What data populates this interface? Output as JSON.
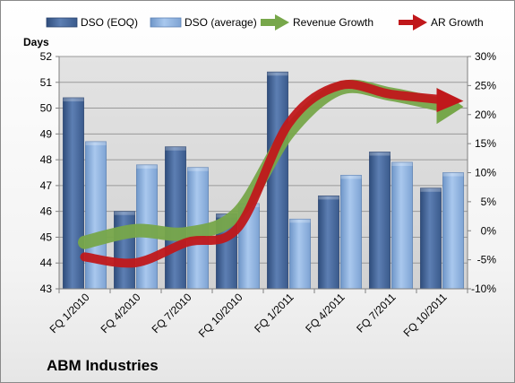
{
  "chart_data": {
    "type": "bar",
    "company": "ABM Industries",
    "ylabel": "Days",
    "ylim": [
      43,
      52
    ],
    "y2lim": [
      -10,
      30
    ],
    "y_ticks": [
      "43",
      "44",
      "45",
      "46",
      "47",
      "48",
      "49",
      "50",
      "51",
      "52"
    ],
    "y2_ticks": [
      "-10%",
      "-5%",
      "0%",
      "5%",
      "10%",
      "15%",
      "20%",
      "25%",
      "30%"
    ],
    "categories": [
      "FQ 1/2010",
      "FQ 4/2010",
      "FQ 7/2010",
      "FQ 10/2010",
      "FQ 1/2011",
      "FQ 4/2011",
      "FQ 7/2011",
      "FQ 10/2011"
    ],
    "series": [
      {
        "name": "DSO (EOQ)",
        "kind": "bar",
        "axis": "left",
        "color": "#4f6fa0",
        "values": [
          50.4,
          46.0,
          48.5,
          45.9,
          51.4,
          46.6,
          48.3,
          46.9
        ]
      },
      {
        "name": "DSO (average)",
        "kind": "bar",
        "axis": "left",
        "color": "#8fb4e3",
        "values": [
          48.7,
          47.8,
          47.7,
          46.3,
          45.7,
          47.4,
          47.9,
          47.5
        ]
      },
      {
        "name": "Revenue Growth",
        "kind": "arrow-line",
        "axis": "right",
        "color": "#77a74a",
        "values": [
          -2,
          0,
          -0.5,
          3,
          17,
          24.5,
          23.5,
          21.5
        ]
      },
      {
        "name": "AR Growth",
        "kind": "arrow-line",
        "axis": "right",
        "color": "#c0181b",
        "values": [
          -4.5,
          -5.5,
          -2,
          0.5,
          18.5,
          25,
          23.5,
          22.5
        ]
      }
    ],
    "grid": true,
    "legend": "top"
  }
}
